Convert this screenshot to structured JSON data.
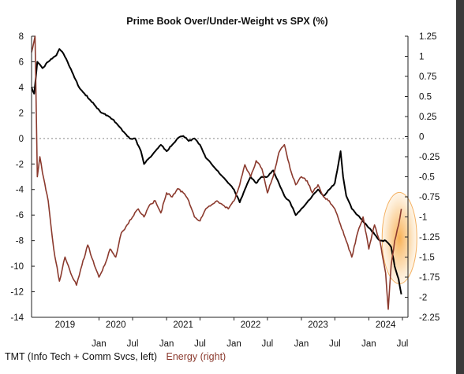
{
  "chart_data": {
    "type": "line",
    "title": "Prime Book Over/Under-Weight vs SPX (%)",
    "left_axis": {
      "range": [
        -14,
        8
      ],
      "ticks": [
        8,
        6,
        4,
        2,
        0,
        -2,
        -4,
        -6,
        -8,
        -10,
        -12,
        -14
      ]
    },
    "right_axis": {
      "range": [
        -2.25,
        1.25
      ],
      "ticks": [
        "1.25",
        "1",
        "0.75",
        "0.5",
        "0.25",
        "0",
        "-0.25",
        "-0.5",
        "-0.75",
        "-1",
        "-1.25",
        "-1.5",
        "-1.75",
        "-2",
        "-2.25"
      ]
    },
    "x_range": [
      "2019-01-01",
      "2024-07-31"
    ],
    "month_ticks": [
      {
        "label": "Jan",
        "date": "2020-01-01"
      },
      {
        "label": "Jul",
        "date": "2020-07-01"
      },
      {
        "label": "Jan",
        "date": "2021-01-01"
      },
      {
        "label": "Jul",
        "date": "2021-07-01"
      },
      {
        "label": "Jan",
        "date": "2022-01-01"
      },
      {
        "label": "Jul",
        "date": "2022-07-01"
      },
      {
        "label": "Jan",
        "date": "2023-01-01"
      },
      {
        "label": "Jul",
        "date": "2023-07-01"
      },
      {
        "label": "Jan",
        "date": "2024-01-01"
      },
      {
        "label": "Jul",
        "date": "2024-07-01"
      }
    ],
    "year_labels": [
      {
        "label": "2019",
        "date": "2019-07-01"
      },
      {
        "label": "2020",
        "date": "2020-04-01"
      },
      {
        "label": "2021",
        "date": "2021-04-01"
      },
      {
        "label": "2022",
        "date": "2022-04-01"
      },
      {
        "label": "2023",
        "date": "2023-04-01"
      },
      {
        "label": "2024",
        "date": "2024-04-01"
      }
    ],
    "zero_reference_line": true,
    "highlight": {
      "shape": "ellipse",
      "color": "#f5a030",
      "center_date": "2024-06-15",
      "center_left_value": -7.8
    },
    "series": [
      {
        "name": "TMT (Info Tech + Comm Svcs, left)",
        "axis": "left",
        "color": "#000000",
        "points": [
          [
            "2019-01-01",
            4.0
          ],
          [
            "2019-01-15",
            3.5
          ],
          [
            "2019-02-01",
            6.0
          ],
          [
            "2019-03-01",
            5.5
          ],
          [
            "2019-04-01",
            6.0
          ],
          [
            "2019-05-15",
            6.5
          ],
          [
            "2019-06-01",
            7.0
          ],
          [
            "2019-06-15",
            6.8
          ],
          [
            "2019-07-15",
            6.0
          ],
          [
            "2019-08-15",
            5.0
          ],
          [
            "2019-09-15",
            4.0
          ],
          [
            "2019-10-15",
            3.5
          ],
          [
            "2019-11-15",
            3.0
          ],
          [
            "2019-12-15",
            2.5
          ],
          [
            "2020-01-15",
            2.0
          ],
          [
            "2020-02-15",
            1.8
          ],
          [
            "2020-03-15",
            1.5
          ],
          [
            "2020-04-15",
            1.0
          ],
          [
            "2020-05-15",
            0.5
          ],
          [
            "2020-06-15",
            0.0
          ],
          [
            "2020-07-15",
            0.0
          ],
          [
            "2020-08-15",
            -1.0
          ],
          [
            "2020-09-01",
            -2.0
          ],
          [
            "2020-10-01",
            -1.5
          ],
          [
            "2020-11-01",
            -1.0
          ],
          [
            "2020-12-01",
            -0.5
          ],
          [
            "2021-01-01",
            -1.0
          ],
          [
            "2021-02-01",
            -0.5
          ],
          [
            "2021-03-01",
            0.0
          ],
          [
            "2021-04-01",
            0.2
          ],
          [
            "2021-05-01",
            -0.2
          ],
          [
            "2021-06-01",
            0.0
          ],
          [
            "2021-07-01",
            -0.5
          ],
          [
            "2021-08-01",
            -1.5
          ],
          [
            "2021-09-01",
            -2.0
          ],
          [
            "2021-10-01",
            -2.5
          ],
          [
            "2021-11-01",
            -3.0
          ],
          [
            "2021-12-01",
            -3.5
          ],
          [
            "2022-01-01",
            -4.0
          ],
          [
            "2022-02-01",
            -5.0
          ],
          [
            "2022-03-01",
            -4.0
          ],
          [
            "2022-04-01",
            -3.0
          ],
          [
            "2022-05-01",
            -3.5
          ],
          [
            "2022-06-01",
            -3.0
          ],
          [
            "2022-07-01",
            -3.0
          ],
          [
            "2022-08-01",
            -2.5
          ],
          [
            "2022-09-01",
            -3.5
          ],
          [
            "2022-10-01",
            -4.5
          ],
          [
            "2022-11-01",
            -5.0
          ],
          [
            "2022-12-01",
            -6.0
          ],
          [
            "2023-01-01",
            -5.5
          ],
          [
            "2023-02-01",
            -5.0
          ],
          [
            "2023-03-01",
            -4.5
          ],
          [
            "2023-04-01",
            -4.0
          ],
          [
            "2023-05-01",
            -4.5
          ],
          [
            "2023-06-01",
            -4.0
          ],
          [
            "2023-07-01",
            -3.5
          ],
          [
            "2023-07-20",
            -2.0
          ],
          [
            "2023-08-01",
            -1.0
          ],
          [
            "2023-08-15",
            -3.0
          ],
          [
            "2023-09-01",
            -4.5
          ],
          [
            "2023-10-01",
            -5.5
          ],
          [
            "2023-11-01",
            -6.0
          ],
          [
            "2023-12-01",
            -6.5
          ],
          [
            "2024-01-01",
            -7.0
          ],
          [
            "2024-02-01",
            -7.5
          ],
          [
            "2024-03-01",
            -8.0
          ],
          [
            "2024-04-01",
            -8.0
          ],
          [
            "2024-05-01",
            -8.5
          ],
          [
            "2024-05-20",
            -10.0
          ],
          [
            "2024-06-10",
            -11.0
          ],
          [
            "2024-06-25",
            -12.2
          ]
        ]
      },
      {
        "name": "Energy (right)",
        "axis": "right",
        "color": "#8b3a2e",
        "points": [
          [
            "2019-01-01",
            1.05
          ],
          [
            "2019-01-20",
            1.25
          ],
          [
            "2019-02-01",
            -0.5
          ],
          [
            "2019-02-15",
            -0.25
          ],
          [
            "2019-03-01",
            -0.45
          ],
          [
            "2019-04-01",
            -0.8
          ],
          [
            "2019-05-01",
            -1.4
          ],
          [
            "2019-06-01",
            -1.8
          ],
          [
            "2019-07-01",
            -1.5
          ],
          [
            "2019-08-01",
            -1.7
          ],
          [
            "2019-09-01",
            -1.85
          ],
          [
            "2019-10-01",
            -1.6
          ],
          [
            "2019-11-01",
            -1.35
          ],
          [
            "2019-12-01",
            -1.55
          ],
          [
            "2020-01-01",
            -1.75
          ],
          [
            "2020-02-01",
            -1.6
          ],
          [
            "2020-03-01",
            -1.4
          ],
          [
            "2020-04-01",
            -1.5
          ],
          [
            "2020-05-01",
            -1.2
          ],
          [
            "2020-06-01",
            -1.1
          ],
          [
            "2020-07-01",
            -1.0
          ],
          [
            "2020-08-01",
            -0.9
          ],
          [
            "2020-09-01",
            -1.0
          ],
          [
            "2020-10-01",
            -0.85
          ],
          [
            "2020-11-01",
            -0.8
          ],
          [
            "2020-12-01",
            -0.95
          ],
          [
            "2021-01-01",
            -0.7
          ],
          [
            "2021-02-01",
            -0.75
          ],
          [
            "2021-03-01",
            -0.65
          ],
          [
            "2021-04-01",
            -0.7
          ],
          [
            "2021-05-01",
            -0.8
          ],
          [
            "2021-06-01",
            -1.0
          ],
          [
            "2021-07-01",
            -1.05
          ],
          [
            "2021-08-01",
            -0.9
          ],
          [
            "2021-09-01",
            -0.85
          ],
          [
            "2021-10-01",
            -0.8
          ],
          [
            "2021-11-01",
            -0.85
          ],
          [
            "2021-12-01",
            -0.9
          ],
          [
            "2022-01-01",
            -0.8
          ],
          [
            "2022-02-01",
            -0.6
          ],
          [
            "2022-03-01",
            -0.35
          ],
          [
            "2022-04-01",
            -0.5
          ],
          [
            "2022-05-01",
            -0.3
          ],
          [
            "2022-06-01",
            -0.4
          ],
          [
            "2022-07-01",
            -0.7
          ],
          [
            "2022-08-01",
            -0.5
          ],
          [
            "2022-09-01",
            -0.2
          ],
          [
            "2022-10-01",
            -0.1
          ],
          [
            "2022-11-01",
            -0.4
          ],
          [
            "2022-12-01",
            -0.6
          ],
          [
            "2023-01-01",
            -0.5
          ],
          [
            "2023-02-01",
            -0.55
          ],
          [
            "2023-03-01",
            -0.7
          ],
          [
            "2023-04-01",
            -0.6
          ],
          [
            "2023-05-01",
            -0.75
          ],
          [
            "2023-06-01",
            -0.8
          ],
          [
            "2023-07-01",
            -0.9
          ],
          [
            "2023-08-01",
            -1.1
          ],
          [
            "2023-09-01",
            -1.3
          ],
          [
            "2023-10-01",
            -1.5
          ],
          [
            "2023-11-01",
            -1.2
          ],
          [
            "2023-12-01",
            -1.0
          ],
          [
            "2024-01-01",
            -1.4
          ],
          [
            "2024-02-01",
            -1.1
          ],
          [
            "2024-03-01",
            -1.3
          ],
          [
            "2024-04-01",
            -1.7
          ],
          [
            "2024-04-15",
            -2.15
          ],
          [
            "2024-05-01",
            -1.6
          ],
          [
            "2024-05-20",
            -1.3
          ],
          [
            "2024-06-10",
            -1.1
          ],
          [
            "2024-06-25",
            -0.9
          ]
        ]
      }
    ]
  }
}
